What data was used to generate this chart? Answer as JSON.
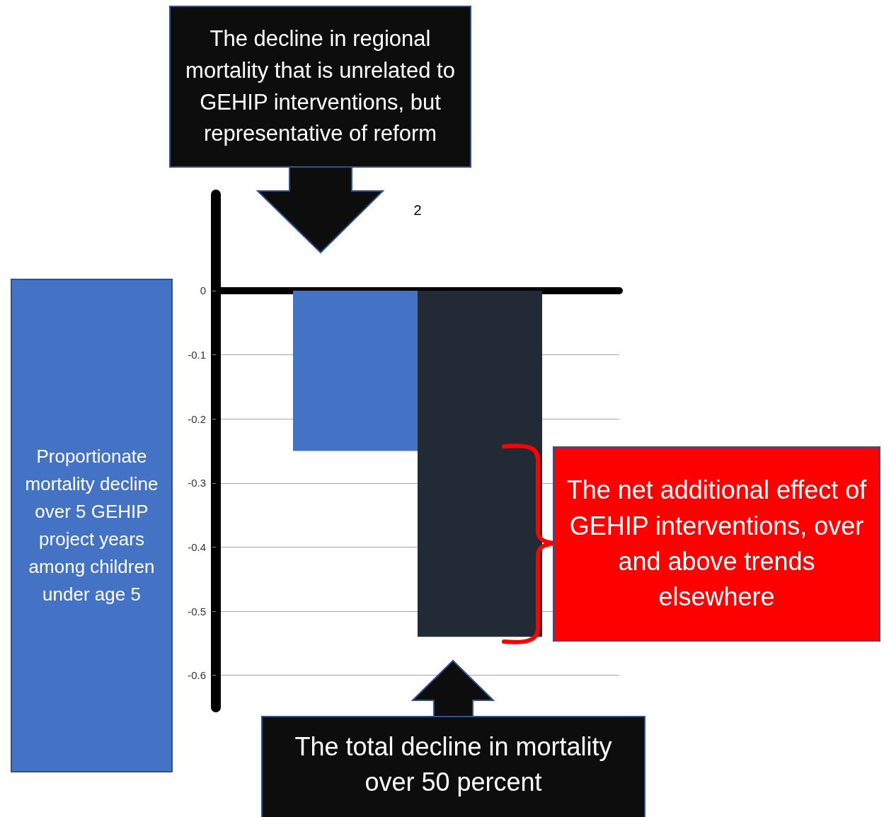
{
  "chart_data": {
    "type": "bar",
    "ylabel": "Proportionate mortality decline over 5 GEHIP project years among children under age 5",
    "categories": [
      "2"
    ],
    "series": [
      {
        "color": "#4472c4",
        "values": [
          -0.25
        ]
      },
      {
        "color": "#222a35",
        "values": [
          -0.54
        ]
      }
    ],
    "ylim": [
      -0.65,
      0.15
    ],
    "yticks": [
      0,
      -0.1,
      -0.2,
      -0.3,
      -0.4,
      -0.5,
      -0.6
    ],
    "grid": "y",
    "annotations": [
      "The decline in regional mortality that is unrelated to GEHIP interventions, but representative of reform",
      "The total  decline in mortality over 50 percent",
      "The net  additional effect of GEHIP interventions, over and above trends elsewhere"
    ]
  }
}
